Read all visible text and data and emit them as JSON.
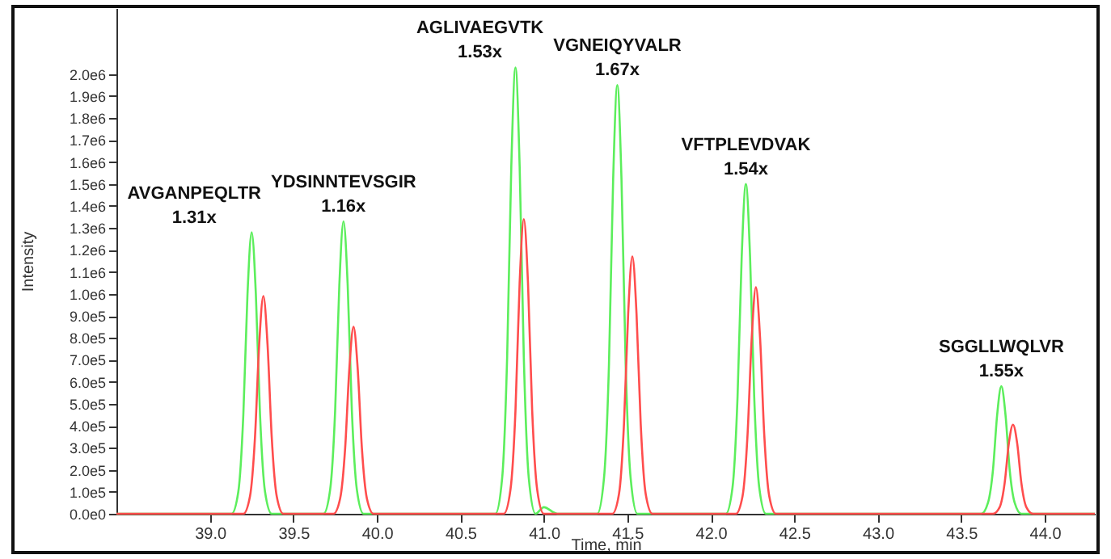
{
  "chart_data": {
    "type": "line",
    "xlabel": "Time, min",
    "ylabel": "Intensity",
    "xlim": [
      38.44,
      44.3
    ],
    "ylim": [
      0,
      2300000
    ],
    "xticks": [
      {
        "value": 39,
        "label": "39.0"
      },
      39.5,
      {
        "value": 40,
        "label": "40.0"
      },
      40.5,
      {
        "value": 41,
        "label": "41.0"
      },
      41.5,
      {
        "value": 42,
        "label": "42.0"
      },
      42.5,
      {
        "value": 43,
        "label": "43.0"
      },
      43.5,
      {
        "value": 44,
        "label": "44.0"
      }
    ],
    "yticks": [
      {
        "value": 0,
        "label": "0.0e0"
      },
      {
        "value": 100000,
        "label": "1.0e5"
      },
      {
        "value": 200000,
        "label": "2.0e5"
      },
      {
        "value": 300000,
        "label": "3.0e5"
      },
      {
        "value": 400000,
        "label": "4.0e5"
      },
      {
        "value": 500000,
        "label": "5.0e5"
      },
      {
        "value": 600000,
        "label": "6.0e5"
      },
      {
        "value": 700000,
        "label": "7.0e5"
      },
      {
        "value": 800000,
        "label": "8.0e5"
      },
      {
        "value": 900000,
        "label": "9.0e5"
      },
      {
        "value": 1000000,
        "label": "1.0e6"
      },
      {
        "value": 1100000,
        "label": "1.1e6"
      },
      {
        "value": 1200000,
        "label": "1.2e6"
      },
      {
        "value": 1300000,
        "label": "1.3e6"
      },
      {
        "value": 1400000,
        "label": "1.4e6"
      },
      {
        "value": 1500000,
        "label": "1.5e6"
      },
      {
        "value": 1600000,
        "label": "1.6e6"
      },
      {
        "value": 1700000,
        "label": "1.7e6"
      },
      {
        "value": 1800000,
        "label": "1.8e6"
      },
      {
        "value": 1900000,
        "label": "1.9e6"
      },
      {
        "value": 2000000,
        "label": "2.0e6"
      }
    ],
    "grid": false,
    "marker": "none",
    "line_style": "solid",
    "series": [
      {
        "color": "#5cee5c",
        "x": [
          38.44,
          39.13,
          39.17,
          39.2,
          39.225,
          39.25,
          39.275,
          39.3,
          39.33,
          39.37,
          39.68,
          39.72,
          39.75,
          39.775,
          39.8,
          39.825,
          39.85,
          39.88,
          39.92,
          40.71,
          40.75,
          40.78,
          40.805,
          40.83,
          40.855,
          40.88,
          40.91,
          40.95,
          41.0,
          41.08,
          41.32,
          41.36,
          41.39,
          41.415,
          41.44,
          41.465,
          41.49,
          41.52,
          41.56,
          42.09,
          42.13,
          42.16,
          42.185,
          42.21,
          42.235,
          42.26,
          42.29,
          42.33,
          43.62,
          43.66,
          43.69,
          43.715,
          43.74,
          43.765,
          43.79,
          43.82,
          43.86,
          44.3
        ],
        "values": [
          0,
          0,
          100000,
          450000,
          1000000,
          1280000,
          1000000,
          450000,
          100000,
          0,
          0,
          110000,
          470000,
          1040000,
          1330000,
          1040000,
          470000,
          110000,
          0,
          0,
          160000,
          710000,
          1580000,
          2030000,
          1580000,
          710000,
          160000,
          0,
          30000,
          0,
          0,
          160000,
          680000,
          1520000,
          1950000,
          1520000,
          680000,
          160000,
          0,
          0,
          120000,
          530000,
          1170000,
          1500000,
          1170000,
          530000,
          120000,
          0,
          0,
          50000,
          200000,
          450000,
          580000,
          450000,
          200000,
          50000,
          0,
          0
        ]
      },
      {
        "color": "#ff4d4d",
        "x": [
          38.44,
          39.2,
          39.24,
          39.27,
          39.295,
          39.32,
          39.345,
          39.37,
          39.4,
          39.44,
          39.74,
          39.78,
          39.81,
          39.835,
          39.86,
          39.885,
          39.91,
          39.94,
          39.98,
          40.76,
          40.8,
          40.83,
          40.855,
          40.88,
          40.905,
          40.93,
          40.96,
          41.0,
          41.41,
          41.45,
          41.48,
          41.505,
          41.53,
          41.555,
          41.58,
          41.61,
          41.65,
          42.15,
          42.19,
          42.22,
          42.245,
          42.27,
          42.295,
          42.32,
          42.35,
          42.39,
          43.69,
          43.73,
          43.76,
          43.785,
          43.81,
          43.835,
          43.86,
          43.89,
          43.93,
          44.3
        ],
        "values": [
          0,
          0,
          80000,
          350000,
          770000,
          990000,
          770000,
          350000,
          80000,
          0,
          0,
          70000,
          300000,
          660000,
          850000,
          660000,
          300000,
          70000,
          0,
          0,
          110000,
          470000,
          1050000,
          1340000,
          1050000,
          470000,
          110000,
          0,
          0,
          90000,
          410000,
          910000,
          1170000,
          910000,
          410000,
          90000,
          0,
          0,
          80000,
          360000,
          800000,
          1030000,
          800000,
          360000,
          80000,
          0,
          0,
          30000,
          140000,
          320000,
          405000,
          320000,
          140000,
          30000,
          0,
          0
        ]
      }
    ],
    "annotations": [
      "AVGANPEQLTR\n1.31x",
      "YDSINNTEVSGIR\n1.16x",
      "AGLIVAEGVTK\n1.53x",
      "VGNEIQYVALR\n1.67x",
      "VFTPLEVDVAK\n1.54x",
      "SGGLLWQLVR\n1.55x"
    ]
  }
}
